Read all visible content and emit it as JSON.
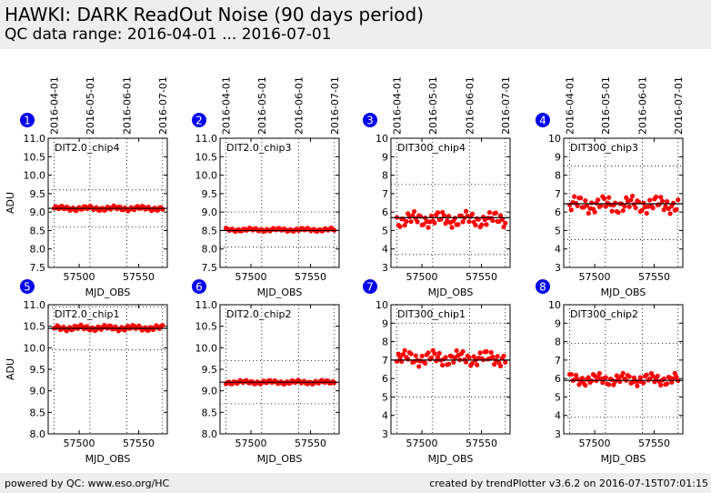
{
  "header": {
    "title": "HAWKI: DARK ReadOut Noise (90 days period)",
    "subtitle": "QC data range: 2016-04-01 ... 2016-07-01"
  },
  "footer": {
    "left": "powered by QC: www.eso.org/HC",
    "right": "created by trendPlotter v3.6.2 on 2016-07-15T07:01:15"
  },
  "colors": {
    "marker": "#ff0000",
    "badge": "#0000ee",
    "trend": "#000000"
  },
  "date_axis": {
    "labels": [
      "2016-04-01",
      "2016-05-01",
      "2016-06-01",
      "2016-07-01"
    ],
    "mjd": [
      57479,
      57509,
      57540,
      57570
    ]
  },
  "chart_data": [
    {
      "type": "scatter",
      "id": "1",
      "label": "DIT2.0_chip4",
      "xlabel": "MJD_OBS",
      "ylabel": "ADU",
      "xlim": [
        57474,
        57574
      ],
      "ylim": [
        7.5,
        11.0
      ],
      "yticks": [
        7.5,
        8.0,
        8.5,
        9.0,
        9.5,
        10.0,
        10.5,
        11.0
      ],
      "xticks": [
        57500,
        57550
      ],
      "mean": 9.1,
      "dotted_y": [
        8.6,
        9.6
      ],
      "x_start": 57479,
      "x_end": 57570,
      "base": 9.1,
      "amp": 0.07,
      "x_gap": []
    },
    {
      "type": "scatter",
      "id": "2",
      "label": "DIT2.0_chip3",
      "xlabel": "MJD_OBS",
      "ylabel": "",
      "xlim": [
        57474,
        57574
      ],
      "ylim": [
        7.5,
        11.0
      ],
      "yticks": [
        7.5,
        8.0,
        8.5,
        9.0,
        9.5,
        10.0,
        10.5,
        11.0
      ],
      "xticks": [
        57500,
        57550
      ],
      "mean": 8.5,
      "dotted_y": [
        8.05,
        9.0
      ],
      "x_start": 57479,
      "x_end": 57570,
      "base": 8.52,
      "amp": 0.05,
      "x_gap": []
    },
    {
      "type": "scatter",
      "id": "3",
      "label": "DIT300_chip4",
      "xlabel": "MJD_OBS",
      "ylabel": "",
      "xlim": [
        57474,
        57574
      ],
      "ylim": [
        3,
        10
      ],
      "yticks": [
        3,
        4,
        5,
        6,
        7,
        8,
        9,
        10
      ],
      "xticks": [
        57500,
        57550
      ],
      "mean": 5.7,
      "dotted_y": [
        3.7,
        7.5
      ],
      "x_start": 57479,
      "x_end": 57570,
      "base": 5.6,
      "amp": 0.45,
      "x_gap": []
    },
    {
      "type": "scatter",
      "id": "4",
      "label": "DIT300_chip3",
      "xlabel": "MJD_OBS",
      "ylabel": "",
      "xlim": [
        57474,
        57574
      ],
      "ylim": [
        3,
        10
      ],
      "yticks": [
        3,
        4,
        5,
        6,
        7,
        8,
        9,
        10
      ],
      "xticks": [
        57500,
        57550
      ],
      "mean": 6.45,
      "dotted_y": [
        4.5,
        8.5
      ],
      "x_start": 57479,
      "x_end": 57570,
      "base": 6.4,
      "amp": 0.5,
      "x_gap": []
    },
    {
      "type": "scatter",
      "id": "5",
      "label": "DIT2.0_chip1",
      "xlabel": "MJD_OBS",
      "ylabel": "ADU",
      "xlim": [
        57474,
        57574
      ],
      "ylim": [
        8.0,
        11.0
      ],
      "yticks": [
        8.0,
        8.5,
        9.0,
        9.5,
        10.0,
        10.5,
        11.0
      ],
      "xticks": [
        57500,
        57550
      ],
      "mean": 10.45,
      "dotted_y": [
        9.95,
        10.95
      ],
      "x_start": 57479,
      "x_end": 57570,
      "base": 10.46,
      "amp": 0.07,
      "x_gap": []
    },
    {
      "type": "scatter",
      "id": "6",
      "label": "DIT2.0_chip2",
      "xlabel": "MJD_OBS",
      "ylabel": "",
      "xlim": [
        57474,
        57574
      ],
      "ylim": [
        8.0,
        11.0
      ],
      "yticks": [
        8.0,
        8.5,
        9.0,
        9.5,
        10.0,
        10.5,
        11.0
      ],
      "xticks": [
        57500,
        57550
      ],
      "mean": 9.2,
      "dotted_y": [
        8.7,
        9.7
      ],
      "x_start": 57479,
      "x_end": 57570,
      "base": 9.2,
      "amp": 0.05,
      "x_gap": []
    },
    {
      "type": "scatter",
      "id": "7",
      "label": "DIT300_chip1",
      "xlabel": "MJD_OBS",
      "ylabel": "",
      "xlim": [
        57474,
        57574
      ],
      "ylim": [
        3,
        10
      ],
      "yticks": [
        3,
        4,
        5,
        6,
        7,
        8,
        9,
        10
      ],
      "xticks": [
        57500,
        57550
      ],
      "mean": 7.0,
      "dotted_y": [
        5.0,
        9.0
      ],
      "x_start": 57479,
      "x_end": 57570,
      "base": 7.1,
      "amp": 0.45,
      "x_gap": []
    },
    {
      "type": "scatter",
      "id": "8",
      "label": "DIT300_chip2",
      "xlabel": "MJD_OBS",
      "ylabel": "",
      "xlim": [
        57474,
        57574
      ],
      "ylim": [
        3,
        10
      ],
      "yticks": [
        3,
        4,
        5,
        6,
        7,
        8,
        9,
        10
      ],
      "xticks": [
        57500,
        57550
      ],
      "mean": 5.9,
      "dotted_y": [
        3.9,
        7.9
      ],
      "x_start": 57479,
      "x_end": 57570,
      "base": 5.95,
      "amp": 0.35,
      "x_gap": []
    }
  ]
}
